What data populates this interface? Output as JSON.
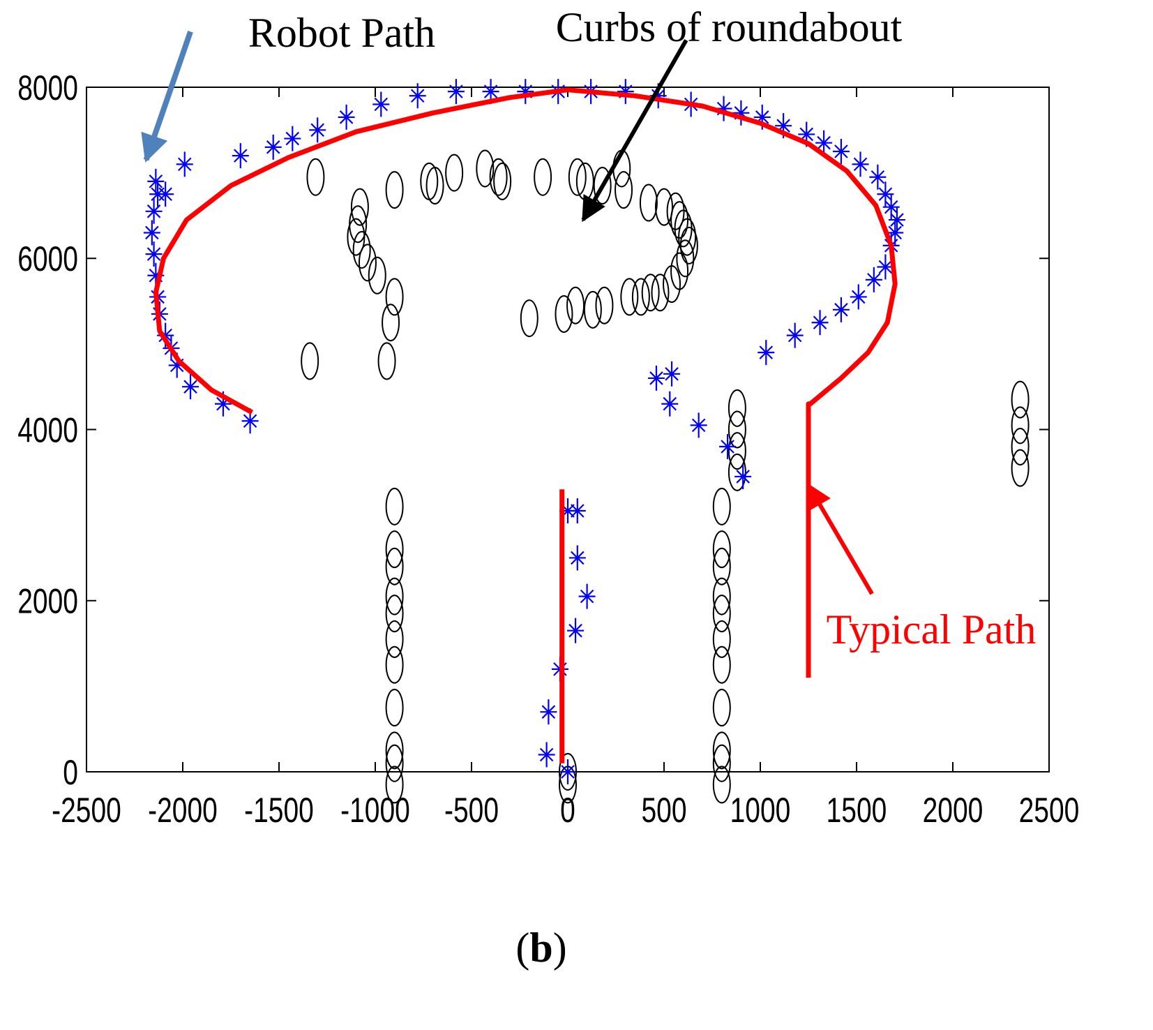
{
  "chart_data": {
    "type": "scatter",
    "xlim": [
      -2500,
      2500
    ],
    "ylim": [
      0,
      8000
    ],
    "xticks": [
      -2500,
      -2000,
      -1500,
      -1000,
      -500,
      0,
      500,
      1000,
      1500,
      2000,
      2500
    ],
    "yticks": [
      0,
      2000,
      4000,
      6000,
      8000
    ],
    "xtick_labels": [
      "-2500",
      "-2000",
      "-1500",
      "-1000",
      "-500",
      "0",
      "500",
      "1000",
      "1500",
      "2000",
      "2500"
    ],
    "ytick_labels": [
      "0",
      "2000",
      "4000",
      "6000",
      "8000"
    ],
    "grid": false,
    "series": [
      {
        "marker": "asterisk",
        "color": "#0000ff",
        "points": [
          [
            -1650,
            4100
          ],
          [
            -1790,
            4300
          ],
          [
            -1960,
            4500
          ],
          [
            -2030,
            4750
          ],
          [
            -2060,
            4950
          ],
          [
            -2090,
            5100
          ],
          [
            -2120,
            5350
          ],
          [
            -2130,
            5550
          ],
          [
            -2140,
            5800
          ],
          [
            -2150,
            6050
          ],
          [
            -2160,
            6300
          ],
          [
            -2150,
            6550
          ],
          [
            -2130,
            6750
          ],
          [
            -2090,
            6750
          ],
          [
            -2140,
            6900
          ],
          [
            -1990,
            7100
          ],
          [
            -1700,
            7200
          ],
          [
            -1530,
            7300
          ],
          [
            -1430,
            7400
          ],
          [
            -1300,
            7500
          ],
          [
            -1150,
            7650
          ],
          [
            -970,
            7800
          ],
          [
            -780,
            7900
          ],
          [
            -580,
            7950
          ],
          [
            -400,
            7950
          ],
          [
            -220,
            7950
          ],
          [
            -50,
            7950
          ],
          [
            120,
            7950
          ],
          [
            300,
            7950
          ],
          [
            470,
            7900
          ],
          [
            640,
            7800
          ],
          [
            810,
            7750
          ],
          [
            900,
            7700
          ],
          [
            1010,
            7650
          ],
          [
            1120,
            7550
          ],
          [
            1240,
            7450
          ],
          [
            1330,
            7350
          ],
          [
            1420,
            7250
          ],
          [
            1520,
            7100
          ],
          [
            1610,
            6950
          ],
          [
            1650,
            6750
          ],
          [
            1680,
            6600
          ],
          [
            1710,
            6450
          ],
          [
            1700,
            6300
          ],
          [
            1680,
            6150
          ],
          [
            1650,
            5900
          ],
          [
            1590,
            5750
          ],
          [
            1510,
            5550
          ],
          [
            1420,
            5400
          ],
          [
            1310,
            5250
          ],
          [
            1180,
            5100
          ],
          [
            1030,
            4900
          ],
          [
            540,
            4650
          ],
          [
            460,
            4600
          ],
          [
            530,
            4300
          ],
          [
            680,
            4050
          ],
          [
            830,
            3800
          ],
          [
            910,
            3450
          ],
          [
            0,
            3050
          ],
          [
            50,
            3050
          ],
          [
            50,
            2500
          ],
          [
            100,
            2050
          ],
          [
            40,
            1650
          ],
          [
            -40,
            1200
          ],
          [
            -100,
            700
          ],
          [
            -110,
            200
          ],
          [
            0,
            0
          ]
        ]
      },
      {
        "marker": "ellipse",
        "color": "#000000",
        "points": [
          [
            -1310,
            6950
          ],
          [
            -900,
            6800
          ],
          [
            -1080,
            6600
          ],
          [
            -1090,
            6400
          ],
          [
            -1100,
            6250
          ],
          [
            -1070,
            6100
          ],
          [
            -1040,
            5950
          ],
          [
            -990,
            5800
          ],
          [
            -900,
            5550
          ],
          [
            -920,
            5250
          ],
          [
            -940,
            4800
          ],
          [
            -1340,
            4800
          ],
          [
            -720,
            6900
          ],
          [
            -690,
            6850
          ],
          [
            -590,
            7000
          ],
          [
            -430,
            7050
          ],
          [
            -360,
            6950
          ],
          [
            -340,
            6900
          ],
          [
            -130,
            6950
          ],
          [
            50,
            6950
          ],
          [
            90,
            6900
          ],
          [
            180,
            6850
          ],
          [
            280,
            7050
          ],
          [
            290,
            6800
          ],
          [
            420,
            6650
          ],
          [
            500,
            6600
          ],
          [
            560,
            6550
          ],
          [
            580,
            6450
          ],
          [
            600,
            6350
          ],
          [
            620,
            6250
          ],
          [
            630,
            6150
          ],
          [
            610,
            6000
          ],
          [
            580,
            5850
          ],
          [
            540,
            5700
          ],
          [
            480,
            5600
          ],
          [
            430,
            5600
          ],
          [
            380,
            5550
          ],
          [
            320,
            5550
          ],
          [
            190,
            5450
          ],
          [
            130,
            5400
          ],
          [
            40,
            5450
          ],
          [
            -20,
            5350
          ],
          [
            -200,
            5300
          ],
          [
            -900,
            3100
          ],
          [
            -900,
            2600
          ],
          [
            -900,
            2400
          ],
          [
            -900,
            2050
          ],
          [
            -900,
            1850
          ],
          [
            -900,
            1550
          ],
          [
            -900,
            1250
          ],
          [
            -900,
            750
          ],
          [
            -900,
            250
          ],
          [
            -900,
            100
          ],
          [
            -900,
            -150
          ],
          [
            0,
            0
          ],
          [
            0,
            -150
          ],
          [
            800,
            3100
          ],
          [
            800,
            2600
          ],
          [
            800,
            2400
          ],
          [
            800,
            2050
          ],
          [
            800,
            1850
          ],
          [
            800,
            1550
          ],
          [
            800,
            1250
          ],
          [
            800,
            750
          ],
          [
            800,
            250
          ],
          [
            800,
            100
          ],
          [
            800,
            -150
          ],
          [
            880,
            4250
          ],
          [
            880,
            4000
          ],
          [
            880,
            3750
          ],
          [
            880,
            3500
          ],
          [
            2350,
            4350
          ],
          [
            2350,
            4050
          ],
          [
            2350,
            3800
          ],
          [
            2350,
            3550
          ]
        ]
      }
    ],
    "overlay_paths": [
      {
        "color": "#ff0000",
        "points": [
          [
            -1640,
            4200
          ],
          [
            -1850,
            4460
          ],
          [
            -2020,
            4800
          ],
          [
            -2120,
            5150
          ],
          [
            -2140,
            5600
          ],
          [
            -2100,
            6000
          ],
          [
            -1980,
            6450
          ],
          [
            -1750,
            6850
          ],
          [
            -1450,
            7180
          ],
          [
            -1100,
            7480
          ],
          [
            -700,
            7700
          ],
          [
            -300,
            7880
          ],
          [
            0,
            7970
          ],
          [
            350,
            7900
          ],
          [
            700,
            7780
          ],
          [
            1000,
            7580
          ],
          [
            1250,
            7340
          ],
          [
            1450,
            7020
          ],
          [
            1600,
            6620
          ],
          [
            1680,
            6150
          ],
          [
            1700,
            5700
          ],
          [
            1660,
            5250
          ],
          [
            1560,
            4900
          ],
          [
            1420,
            4600
          ],
          [
            1260,
            4300
          ],
          [
            1250,
            4300
          ],
          [
            1250,
            3700
          ],
          [
            1250,
            2600
          ],
          [
            1250,
            1100
          ]
        ]
      },
      {
        "color": "#ff0000",
        "points": [
          [
            -30,
            3300
          ],
          [
            -30,
            100
          ]
        ]
      }
    ],
    "annotations": [
      {
        "text": "Robot Path",
        "color": "#000000",
        "arrow_color": "#4f81bd",
        "arrow_from": [
          -1960,
          8650
        ],
        "arrow_to": [
          -2190,
          7150
        ],
        "arrow_width": 8
      },
      {
        "text": "Curbs of roundabout",
        "color": "#000000",
        "arrow_color": "#000000",
        "arrow_from": [
          615,
          8550
        ],
        "arrow_to": [
          80,
          6450
        ],
        "arrow_width": 6
      },
      {
        "text": "Typical Path",
        "color": "#ff0000",
        "arrow_color": "#ff0000",
        "arrow_from": [
          1580,
          2080
        ],
        "arrow_to": [
          1250,
          3350
        ],
        "arrow_width": 6
      }
    ]
  },
  "caption": {
    "open": "(",
    "bold": "b",
    "close": ")"
  }
}
